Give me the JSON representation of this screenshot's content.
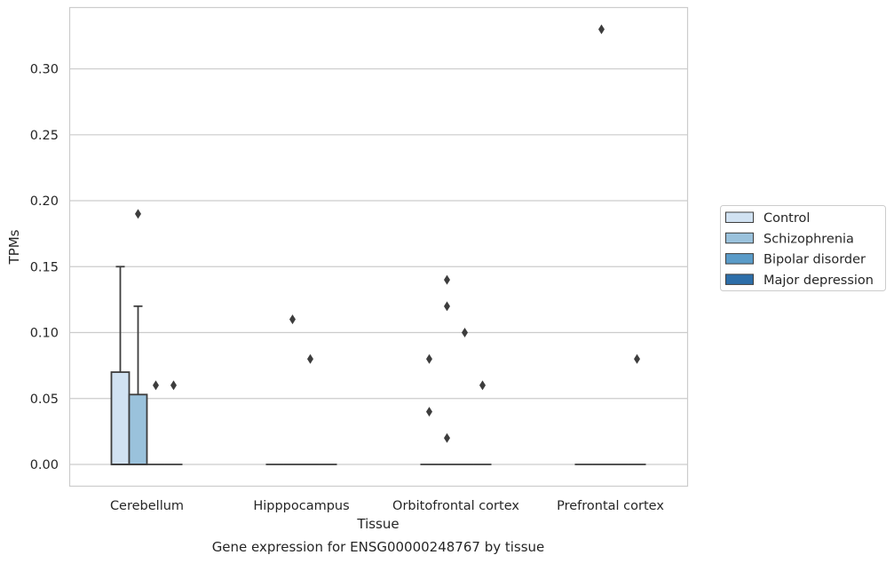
{
  "chart_data": {
    "type": "box",
    "title": "Gene expression for ENSG00000248767 by tissue",
    "xlabel": "Tissue",
    "ylabel": "TPMs",
    "ylim": [
      -0.0165,
      0.3465
    ],
    "yticks": [
      "0.00",
      "0.05",
      "0.10",
      "0.15",
      "0.20",
      "0.25",
      "0.30"
    ],
    "grid": true,
    "legend_position": "right",
    "categories": [
      "Cerebellum",
      "Hipppocampus",
      "Orbitofrontal cortex",
      "Prefrontal cortex"
    ],
    "series": [
      {
        "name": "Control",
        "color": "#d1e2f2",
        "boxes": [
          {
            "q1": 0.0,
            "median": 0.0,
            "q3": 0.07,
            "whisker_low": 0.0,
            "whisker_high": 0.15,
            "outliers": []
          },
          {
            "q1": 0.0,
            "median": 0.0,
            "q3": 0.0,
            "whisker_low": 0.0,
            "whisker_high": 0.0,
            "outliers": []
          },
          {
            "q1": 0.0,
            "median": 0.0,
            "q3": 0.0,
            "whisker_low": 0.0,
            "whisker_high": 0.0,
            "outliers": [
              0.08,
              0.04
            ]
          },
          {
            "q1": 0.0,
            "median": 0.0,
            "q3": 0.0,
            "whisker_low": 0.0,
            "whisker_high": 0.0,
            "outliers": []
          }
        ]
      },
      {
        "name": "Schizophrenia",
        "color": "#9ac2dc",
        "boxes": [
          {
            "q1": 0.0,
            "median": 0.0,
            "q3": 0.053,
            "whisker_low": 0.0,
            "whisker_high": 0.12,
            "outliers": [
              0.19
            ]
          },
          {
            "q1": 0.0,
            "median": 0.0,
            "q3": 0.0,
            "whisker_low": 0.0,
            "whisker_high": 0.0,
            "outliers": [
              0.11
            ]
          },
          {
            "q1": 0.0,
            "median": 0.0,
            "q3": 0.0,
            "whisker_low": 0.0,
            "whisker_high": 0.0,
            "outliers": [
              0.14,
              0.12,
              0.02
            ]
          },
          {
            "q1": 0.0,
            "median": 0.0,
            "q3": 0.0,
            "whisker_low": 0.0,
            "whisker_high": 0.0,
            "outliers": [
              0.33
            ]
          }
        ]
      },
      {
        "name": "Bipolar disorder",
        "color": "#5a9bc8",
        "boxes": [
          {
            "q1": 0.0,
            "median": 0.0,
            "q3": 0.0,
            "whisker_low": 0.0,
            "whisker_high": 0.0,
            "outliers": [
              0.06
            ]
          },
          {
            "q1": 0.0,
            "median": 0.0,
            "q3": 0.0,
            "whisker_low": 0.0,
            "whisker_high": 0.0,
            "outliers": [
              0.08
            ]
          },
          {
            "q1": 0.0,
            "median": 0.0,
            "q3": 0.0,
            "whisker_low": 0.0,
            "whisker_high": 0.0,
            "outliers": [
              0.1
            ]
          },
          {
            "q1": 0.0,
            "median": 0.0,
            "q3": 0.0,
            "whisker_low": 0.0,
            "whisker_high": 0.0,
            "outliers": []
          }
        ]
      },
      {
        "name": "Major depression",
        "color": "#2d6ea9",
        "boxes": [
          {
            "q1": 0.0,
            "median": 0.0,
            "q3": 0.0,
            "whisker_low": 0.0,
            "whisker_high": 0.0,
            "outliers": [
              0.06
            ]
          },
          {
            "q1": 0.0,
            "median": 0.0,
            "q3": 0.0,
            "whisker_low": 0.0,
            "whisker_high": 0.0,
            "outliers": []
          },
          {
            "q1": 0.0,
            "median": 0.0,
            "q3": 0.0,
            "whisker_low": 0.0,
            "whisker_high": 0.0,
            "outliers": [
              0.06
            ]
          },
          {
            "q1": 0.0,
            "median": 0.0,
            "q3": 0.0,
            "whisker_low": 0.0,
            "whisker_high": 0.0,
            "outliers": [
              0.08
            ]
          }
        ]
      }
    ]
  }
}
